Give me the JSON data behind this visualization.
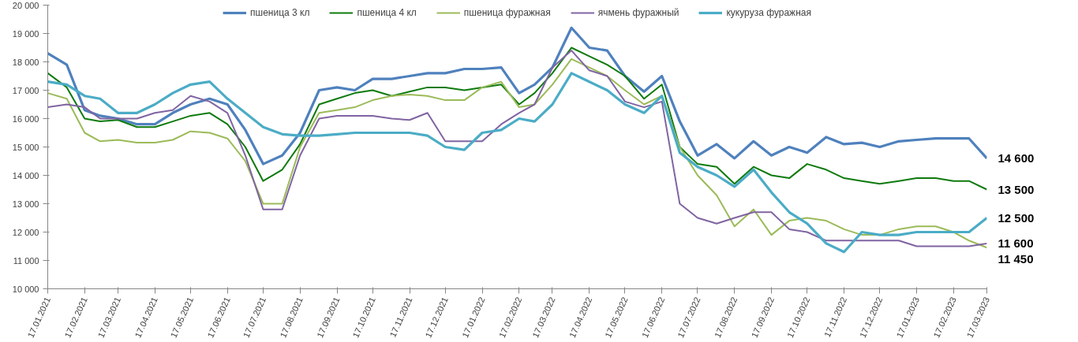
{
  "chart_data": {
    "type": "line",
    "x": [
      "2021-01-17",
      "2021-02-02",
      "2021-02-17",
      "2021-03-02",
      "2021-03-17",
      "2021-04-02",
      "2021-04-17",
      "2021-05-02",
      "2021-05-17",
      "2021-06-02",
      "2021-06-17",
      "2021-07-02",
      "2021-07-17",
      "2021-08-02",
      "2021-08-17",
      "2021-09-02",
      "2021-09-17",
      "2021-10-02",
      "2021-10-17",
      "2021-11-02",
      "2021-11-17",
      "2021-12-02",
      "2021-12-17",
      "2022-01-02",
      "2022-01-17",
      "2022-02-02",
      "2022-02-17",
      "2022-03-02",
      "2022-03-17",
      "2022-04-02",
      "2022-04-17",
      "2022-05-02",
      "2022-05-17",
      "2022-06-02",
      "2022-06-17",
      "2022-07-02",
      "2022-07-17",
      "2022-08-02",
      "2022-08-17",
      "2022-09-02",
      "2022-09-17",
      "2022-10-02",
      "2022-10-17",
      "2022-11-02",
      "2022-11-17",
      "2022-12-02",
      "2022-12-17",
      "2023-01-02",
      "2023-01-17",
      "2023-02-02",
      "2023-02-17",
      "2023-03-02",
      "2023-03-17"
    ],
    "series": [
      {
        "name": "пшеница 3 кл",
        "color": "#4f81bd",
        "values": [
          18300,
          17900,
          16300,
          16100,
          16000,
          15800,
          15800,
          16200,
          16500,
          16700,
          16500,
          15600,
          14400,
          14700,
          15500,
          17000,
          17100,
          17000,
          17400,
          17400,
          17500,
          17600,
          17600,
          17750,
          17750,
          17800,
          16900,
          17200,
          17800,
          19200,
          18500,
          18400,
          17500,
          16950,
          17500,
          15900,
          14700,
          15100,
          14600,
          15200,
          14700,
          15000,
          14800,
          15350,
          15100,
          15150,
          15000,
          15200,
          15250,
          15300,
          15300,
          15300,
          14600
        ],
        "value_labels": [
          null,
          null,
          null,
          null,
          null,
          null,
          null,
          null,
          null,
          null,
          null,
          null,
          null,
          null,
          null,
          null,
          null,
          null,
          null,
          null,
          null,
          null,
          null,
          null,
          null,
          null,
          null,
          null,
          null,
          null,
          null,
          null,
          null,
          null,
          null,
          null,
          null,
          null,
          null,
          null,
          null,
          null,
          null,
          null,
          null,
          null,
          null,
          null,
          null,
          null,
          null,
          null,
          "14 600"
        ]
      },
      {
        "name": "пшеница 4 кл",
        "color": "#0e7a0d",
        "values": [
          17600,
          17100,
          16000,
          15900,
          15950,
          15700,
          15700,
          15900,
          16100,
          16200,
          15800,
          15000,
          13800,
          14200,
          15100,
          16500,
          16700,
          16900,
          17000,
          16800,
          16950,
          17100,
          17100,
          17000,
          17100,
          17200,
          16500,
          16900,
          17600,
          18500,
          18200,
          17900,
          17500,
          16700,
          17200,
          15000,
          14400,
          14300,
          13700,
          14300,
          14000,
          13900,
          14400,
          14200,
          13900,
          13800,
          13700,
          13800,
          13900,
          13900,
          13800,
          13800,
          13500
        ],
        "value_labels": [
          null,
          null,
          null,
          null,
          null,
          null,
          null,
          null,
          null,
          null,
          null,
          null,
          null,
          null,
          null,
          null,
          null,
          null,
          null,
          null,
          null,
          null,
          null,
          null,
          null,
          null,
          null,
          null,
          null,
          null,
          null,
          null,
          null,
          null,
          null,
          null,
          null,
          null,
          null,
          null,
          null,
          null,
          null,
          null,
          null,
          null,
          null,
          null,
          null,
          null,
          null,
          null,
          "13 500"
        ]
      },
      {
        "name": "пшеница фуражная",
        "color": "#9bbb59",
        "values": [
          16900,
          16700,
          15500,
          15200,
          15250,
          15150,
          15150,
          15250,
          15550,
          15500,
          15300,
          14500,
          13000,
          13000,
          15000,
          16200,
          16300,
          16400,
          16650,
          16800,
          16850,
          16800,
          16650,
          16650,
          17100,
          17300,
          16400,
          16500,
          17200,
          18100,
          17800,
          17500,
          17000,
          16500,
          16800,
          15000,
          14000,
          13300,
          12200,
          12800,
          11900,
          12400,
          12500,
          12400,
          12100,
          11900,
          11900,
          12100,
          12200,
          12200,
          12000,
          11700,
          11450
        ],
        "value_labels": [
          null,
          null,
          null,
          null,
          null,
          null,
          null,
          null,
          null,
          null,
          null,
          null,
          null,
          null,
          null,
          null,
          null,
          null,
          null,
          null,
          null,
          null,
          null,
          null,
          null,
          null,
          null,
          null,
          null,
          null,
          null,
          null,
          null,
          null,
          null,
          null,
          null,
          null,
          null,
          null,
          null,
          null,
          null,
          null,
          null,
          null,
          null,
          null,
          null,
          null,
          null,
          null,
          "11 450"
        ]
      },
      {
        "name": "ячмень фуражный",
        "color": "#8064a2",
        "values": [
          16400,
          16500,
          16400,
          16000,
          16000,
          16000,
          16200,
          16300,
          16800,
          16600,
          16200,
          14700,
          12800,
          12800,
          14700,
          16000,
          16100,
          16100,
          16100,
          16000,
          15950,
          16200,
          15200,
          15200,
          15200,
          15800,
          16200,
          16500,
          17800,
          18400,
          17700,
          17500,
          16600,
          16400,
          16600,
          13000,
          12500,
          12300,
          12500,
          12700,
          12700,
          12100,
          12000,
          11700,
          11700,
          11700,
          11700,
          11700,
          11500,
          11500,
          11500,
          11500,
          11600
        ],
        "value_labels": [
          null,
          null,
          null,
          null,
          null,
          null,
          null,
          null,
          null,
          null,
          null,
          null,
          null,
          null,
          null,
          null,
          null,
          null,
          null,
          null,
          null,
          null,
          null,
          null,
          null,
          null,
          null,
          null,
          null,
          null,
          null,
          null,
          null,
          null,
          null,
          null,
          null,
          null,
          null,
          null,
          null,
          null,
          null,
          null,
          null,
          null,
          null,
          null,
          null,
          null,
          null,
          null,
          "11 600"
        ]
      },
      {
        "name": "кукуруза фуражная",
        "color": "#4bacc6",
        "values": [
          17300,
          17200,
          16800,
          16700,
          16200,
          16200,
          16500,
          16900,
          17200,
          17300,
          16700,
          16200,
          15700,
          15450,
          15400,
          15400,
          15450,
          15500,
          15500,
          15500,
          15500,
          15400,
          15000,
          14900,
          15500,
          15600,
          16000,
          15900,
          16500,
          17600,
          17300,
          17000,
          16500,
          16200,
          16800,
          14800,
          14300,
          14000,
          13600,
          14200,
          13400,
          12700,
          12300,
          11600,
          11300,
          12000,
          11900,
          11900,
          12000,
          12000,
          12000,
          12000,
          12500
        ],
        "value_labels": [
          null,
          null,
          null,
          null,
          null,
          null,
          null,
          null,
          null,
          null,
          null,
          null,
          null,
          null,
          null,
          null,
          null,
          null,
          null,
          null,
          null,
          null,
          null,
          null,
          null,
          null,
          null,
          null,
          null,
          null,
          null,
          null,
          null,
          null,
          null,
          null,
          null,
          null,
          null,
          null,
          null,
          null,
          null,
          null,
          null,
          null,
          null,
          null,
          null,
          null,
          null,
          null,
          "12 500"
        ]
      }
    ],
    "xlim": [
      "2021-01-17",
      "2023-03-17"
    ],
    "xticks": [
      {
        "value": "2021-01-17",
        "label": "17.01.2021"
      },
      {
        "value": "2021-02-17",
        "label": "17.02.2021"
      },
      {
        "value": "2021-03-17",
        "label": "17.03.2021"
      },
      {
        "value": "2021-04-17",
        "label": "17.04.2021"
      },
      {
        "value": "2021-05-17",
        "label": "17.05.2021"
      },
      {
        "value": "2021-06-17",
        "label": "17.06.2021"
      },
      {
        "value": "2021-07-17",
        "label": "17.07.2021"
      },
      {
        "value": "2021-08-17",
        "label": "17.08.2021"
      },
      {
        "value": "2021-09-17",
        "label": "17.09.2021"
      },
      {
        "value": "2021-10-17",
        "label": "17.10.2021"
      },
      {
        "value": "2021-11-17",
        "label": "17.11.2021"
      },
      {
        "value": "2021-12-17",
        "label": "17.12.2021"
      },
      {
        "value": "2022-01-17",
        "label": "17.01.2022"
      },
      {
        "value": "2022-02-17",
        "label": "17.02.2022"
      },
      {
        "value": "2022-03-17",
        "label": "17.03.2022"
      },
      {
        "value": "2022-04-17",
        "label": "17.04.2022"
      },
      {
        "value": "2022-05-17",
        "label": "17.05.2022"
      },
      {
        "value": "2022-06-17",
        "label": "17.06.2022"
      },
      {
        "value": "2022-07-17",
        "label": "17.07.2022"
      },
      {
        "value": "2022-08-17",
        "label": "17.08.2022"
      },
      {
        "value": "2022-09-17",
        "label": "17.09.2022"
      },
      {
        "value": "2022-10-17",
        "label": "17.10.2022"
      },
      {
        "value": "2022-11-17",
        "label": "17.11.2022"
      },
      {
        "value": "2022-12-17",
        "label": "17.12.2022"
      },
      {
        "value": "2023-01-17",
        "label": "17.01.2023"
      },
      {
        "value": "2023-02-17",
        "label": "17.02.2023"
      },
      {
        "value": "2023-03-17",
        "label": "17.03.2023"
      }
    ],
    "ylim": [
      10000,
      20000
    ],
    "yticks": [
      {
        "value": 10000,
        "label": "10 000"
      },
      {
        "value": 11000,
        "label": "11 000"
      },
      {
        "value": 12000,
        "label": "12 000"
      },
      {
        "value": 13000,
        "label": "13 000"
      },
      {
        "value": 14000,
        "label": "14 000"
      },
      {
        "value": 15000,
        "label": "15 000"
      },
      {
        "value": 16000,
        "label": "16 000"
      },
      {
        "value": 17000,
        "label": "17 000"
      },
      {
        "value": 18000,
        "label": "18 000"
      },
      {
        "value": 19000,
        "label": "19 000"
      },
      {
        "value": 20000,
        "label": "20 000"
      }
    ],
    "legend": "top",
    "grid": false,
    "marker": "none",
    "line_style": "solid"
  }
}
